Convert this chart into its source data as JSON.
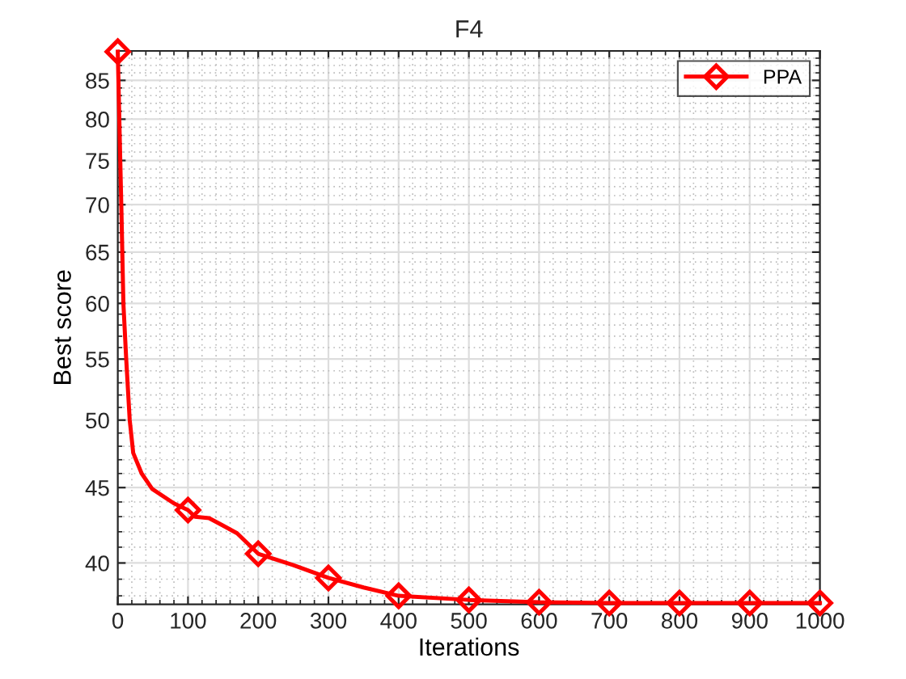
{
  "chart_data": {
    "type": "line",
    "title": "F4",
    "xlabel": "Iterations",
    "ylabel": "Best score",
    "series": [
      {
        "name": "PPA",
        "color": "#ff0000",
        "marker": "none",
        "x": [
          0,
          5,
          8,
          12,
          17,
          22,
          34,
          49,
          80,
          100,
          110,
          130,
          150,
          170,
          200,
          250,
          300,
          350,
          400,
          500,
          600,
          700,
          800,
          900,
          1000
        ],
        "values": [
          88.9,
          70,
          60,
          55,
          50,
          47.5,
          46,
          44.9,
          43.9,
          43.45,
          43.0,
          42.9,
          42.4,
          41.9,
          40.58,
          39.87,
          39.08,
          38.5,
          38.0,
          37.76,
          37.62,
          37.58,
          37.58,
          37.58,
          37.58
        ]
      },
      {
        "type": "scatter",
        "color": "#ff0000",
        "marker": "diamond",
        "x": [
          0,
          100,
          200,
          300,
          400,
          500,
          600,
          700,
          800,
          900,
          1000
        ],
        "values": [
          88.9,
          43.45,
          40.58,
          39.08,
          38.0,
          37.76,
          37.62,
          37.58,
          37.58,
          37.58,
          37.58
        ]
      }
    ],
    "log": "y",
    "xlim": [
      0,
      1000
    ],
    "xticks": [
      0,
      100,
      200,
      300,
      400,
      500,
      600,
      700,
      800,
      900,
      1000
    ],
    "ylim": [
      37.5,
      89
    ],
    "yticks": [
      40,
      45,
      50,
      55,
      60,
      65,
      70,
      75,
      80,
      85
    ],
    "grid": true,
    "legend": "top right",
    "line_style": "solid"
  }
}
